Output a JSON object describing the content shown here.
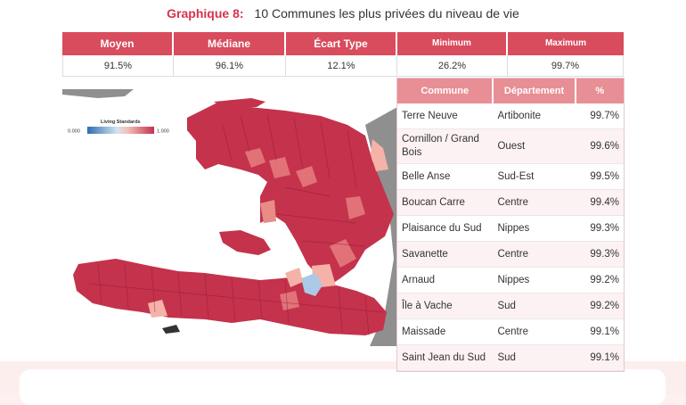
{
  "header": {
    "label": "Graphique 8:",
    "text": "10 Communes les plus privées du niveau de vie"
  },
  "stats": {
    "headers": [
      "Moyen",
      "Médiane",
      "Écart Type",
      "Minimum",
      "Maximum"
    ],
    "values": [
      "91.5%",
      "96.1%",
      "12.1%",
      "26.2%",
      "99.7%"
    ]
  },
  "legend": {
    "title": "Living Standards",
    "min": "0.000",
    "max": "1.000"
  },
  "table": {
    "headers": [
      "Commune",
      "Département",
      "%"
    ],
    "rows": [
      {
        "commune": "Terre Neuve",
        "departement": "Artibonite",
        "pct": "99.7%"
      },
      {
        "commune": "Cornillon / Grand Bois",
        "departement": "Ouest",
        "pct": "99.6%"
      },
      {
        "commune": "Belle Anse",
        "departement": "Sud-Est",
        "pct": "99.5%"
      },
      {
        "commune": "Boucan Carre",
        "departement": "Centre",
        "pct": "99.4%"
      },
      {
        "commune": "Plaisance du Sud",
        "departement": "Nippes",
        "pct": "99.3%"
      },
      {
        "commune": "Savanette",
        "departement": "Centre",
        "pct": "99.3%"
      },
      {
        "commune": "Arnaud",
        "departement": "Nippes",
        "pct": "99.2%"
      },
      {
        "commune": "Île à Vache",
        "departement": "Sud",
        "pct": "99.2%"
      },
      {
        "commune": "Maissade",
        "departement": "Centre",
        "pct": "99.1%"
      },
      {
        "commune": "Saint Jean du Sud",
        "departement": "Sud",
        "pct": "99.1%"
      }
    ]
  },
  "colors": {
    "accent": "#d8334a",
    "header_bg": "#d84c5e",
    "table_header_bg": "#e88e95",
    "map_dark": "#c4324c",
    "map_mid": "#e27277",
    "map_light": "#f4b2a8",
    "map_blue": "#a9c9e6"
  }
}
